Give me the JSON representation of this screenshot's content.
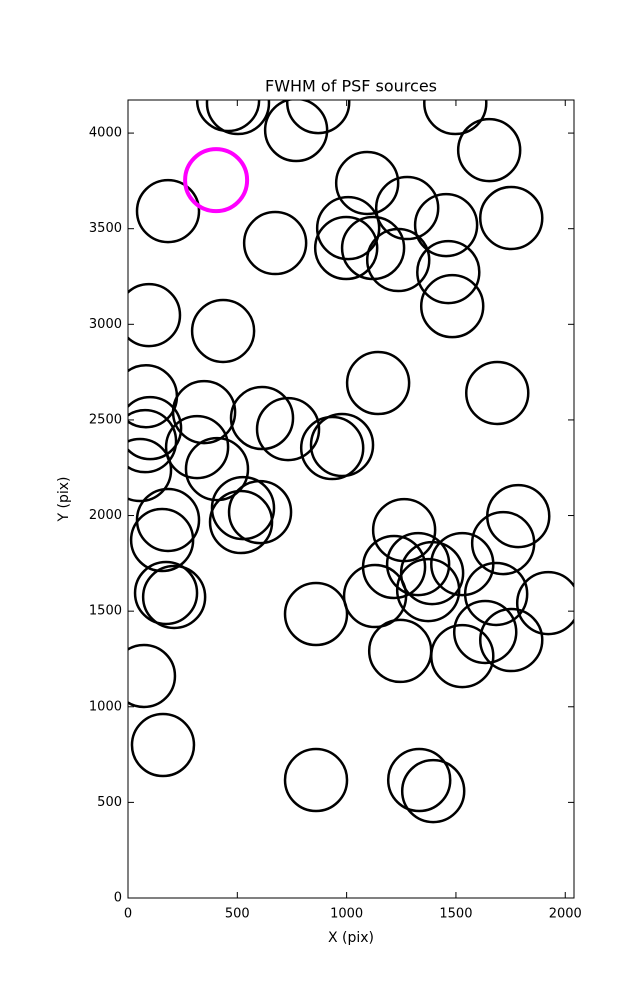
{
  "chart_data": {
    "type": "scatter",
    "title": "FWHM of PSF sources",
    "x_label": "X (pix)",
    "y_label": "Y (pix)",
    "xlim": [
      0,
      2040
    ],
    "ylim": [
      0,
      4173
    ],
    "xticks": [
      0,
      500,
      1000,
      1500,
      2000
    ],
    "yticks": [
      0,
      500,
      1000,
      1500,
      2000,
      2500,
      3000,
      3500,
      4000
    ],
    "series": [
      {
        "color": "#000000",
        "x": [
          458,
          503,
          870,
          1497,
          183,
          769,
          1652,
          1094,
          1277,
          1753,
          1455,
          673,
          1007,
          998,
          1121,
          1236,
          1465,
          1483,
          96,
          435,
          82,
          1144,
          1689,
          348,
          613,
          101,
          78,
          732,
          316,
          979,
          934,
          407,
          55,
          183,
          526,
          517,
          604,
          156,
          1263,
          1785,
          1716,
          1217,
          1327,
          1391,
          1529,
          1130,
          1373,
          174,
          211,
          1684,
          1922,
          860,
          1634,
          1753,
          1245,
          1529,
          73,
          160,
          860,
          1332,
          1396
        ],
        "values": [
          4173,
          4157,
          4162,
          4157,
          3592,
          4016,
          3911,
          3739,
          3608,
          3556,
          3519,
          3425,
          3503,
          3399,
          3399,
          3336,
          3273,
          3095,
          3048,
          2965,
          2624,
          2693,
          2641,
          2541,
          2510,
          2457,
          2389,
          2452,
          2358,
          2369,
          2353,
          2243,
          2238,
          1977,
          2039,
          1966,
          2018,
          1872,
          1924,
          1997,
          1856,
          1731,
          1746,
          1699,
          1746,
          1579,
          1610,
          1595,
          1574,
          1590,
          1542,
          1485,
          1391,
          1349,
          1292,
          1265,
          1161,
          800,
          617,
          617,
          559
        ]
      },
      {
        "color": "#ff00ff",
        "x": [
          403
        ],
        "values": [
          3754
        ]
      }
    ]
  }
}
